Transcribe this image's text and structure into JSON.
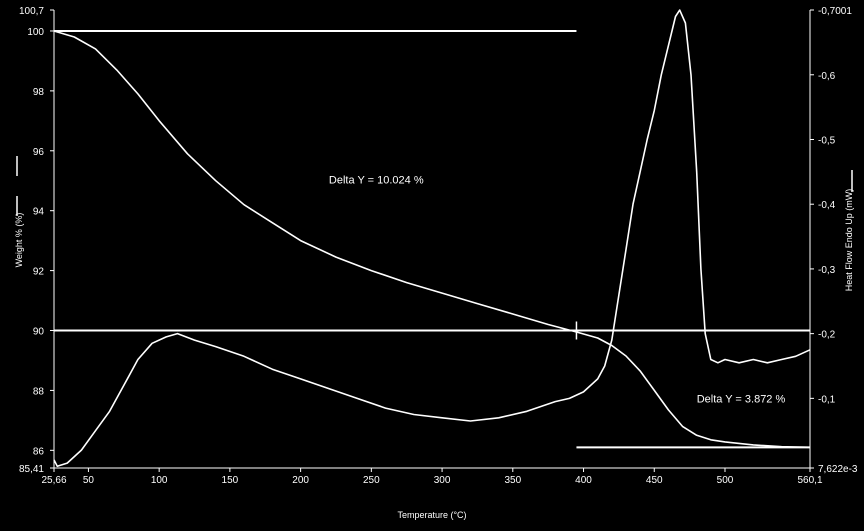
{
  "chart_data": {
    "type": "line",
    "title": "",
    "xlabel": "Temperature (°C)",
    "ylabel_left": "Weight % (%)",
    "ylabel_right": "Heat Flow Endo Up (mW)",
    "xlim": [
      25.66,
      560.1
    ],
    "ylim_left": [
      85.41,
      100.7
    ],
    "ylim_right": [
      0.007622,
      -0.7001
    ],
    "x_tick_labels": [
      "25,66",
      "50",
      "100",
      "150",
      "200",
      "250",
      "300",
      "350",
      "400",
      "450",
      "500",
      "560,1"
    ],
    "y_left_tick_labels": [
      "85,41",
      "86",
      "88",
      "90",
      "92",
      "94",
      "96",
      "98",
      "100",
      "100,7"
    ],
    "y_right_tick_labels": [
      "7,622e-3",
      "-0,1",
      "-0,2",
      "-0,3",
      "-0,4",
      "-0,5",
      "-0,6",
      "-0,7001"
    ],
    "series": [
      {
        "axis": "left",
        "x": [
          25.66,
          40,
          55,
          70,
          85,
          100,
          120,
          140,
          160,
          180,
          200,
          225,
          250,
          275,
          300,
          325,
          350,
          375,
          395,
          410,
          420,
          430,
          440,
          450,
          460,
          470,
          480,
          490,
          500,
          520,
          540,
          560.1
        ],
        "values": [
          100,
          99.8,
          99.4,
          98.7,
          97.9,
          97.0,
          95.9,
          95.0,
          94.2,
          93.6,
          93.0,
          92.45,
          92.0,
          91.6,
          91.25,
          90.9,
          90.55,
          90.2,
          89.95,
          89.75,
          89.5,
          89.15,
          88.65,
          88.0,
          87.35,
          86.8,
          86.5,
          86.35,
          86.28,
          86.18,
          86.12,
          86.1
        ]
      },
      {
        "axis": "right",
        "x": [
          25.66,
          28,
          35,
          45,
          55,
          65,
          75,
          85,
          95,
          105,
          113,
          125,
          140,
          160,
          180,
          200,
          220,
          240,
          260,
          280,
          300,
          320,
          340,
          360,
          380,
          390,
          400,
          410,
          415,
          420,
          425,
          430,
          435,
          440,
          445,
          450,
          455,
          460,
          465,
          468,
          472,
          476,
          480,
          483,
          486,
          490,
          495,
          500,
          510,
          520,
          530,
          540,
          550,
          560.1
        ],
        "values": [
          -0.005,
          0.005,
          0.0,
          -0.02,
          -0.05,
          -0.08,
          -0.12,
          -0.16,
          -0.185,
          -0.195,
          -0.2,
          -0.19,
          -0.18,
          -0.165,
          -0.145,
          -0.13,
          -0.115,
          -0.1,
          -0.085,
          -0.075,
          -0.07,
          -0.065,
          -0.07,
          -0.08,
          -0.095,
          -0.1,
          -0.11,
          -0.13,
          -0.15,
          -0.19,
          -0.26,
          -0.33,
          -0.4,
          -0.45,
          -0.5,
          -0.545,
          -0.6,
          -0.645,
          -0.69,
          -0.7,
          -0.68,
          -0.6,
          -0.45,
          -0.3,
          -0.2,
          -0.16,
          -0.155,
          -0.16,
          -0.155,
          -0.16,
          -0.155,
          -0.16,
          -0.165,
          -0.175
        ]
      }
    ],
    "reference_lines": [
      {
        "axis": "left",
        "y": 100,
        "x": [
          25.66,
          395
        ]
      },
      {
        "axis": "left",
        "y": 90,
        "x": [
          25.66,
          560.1
        ]
      },
      {
        "axis": "left",
        "y": 86.1,
        "x": [
          395,
          560.1
        ]
      }
    ],
    "marker_x": 395,
    "annotations": [
      {
        "text": "Delta Y = 10.024 %",
        "x": 220,
        "y": 94.9
      },
      {
        "text": "Delta Y = 3.872 %",
        "x": 480,
        "y": 87.6
      }
    ],
    "grid": false,
    "legend": "none"
  }
}
